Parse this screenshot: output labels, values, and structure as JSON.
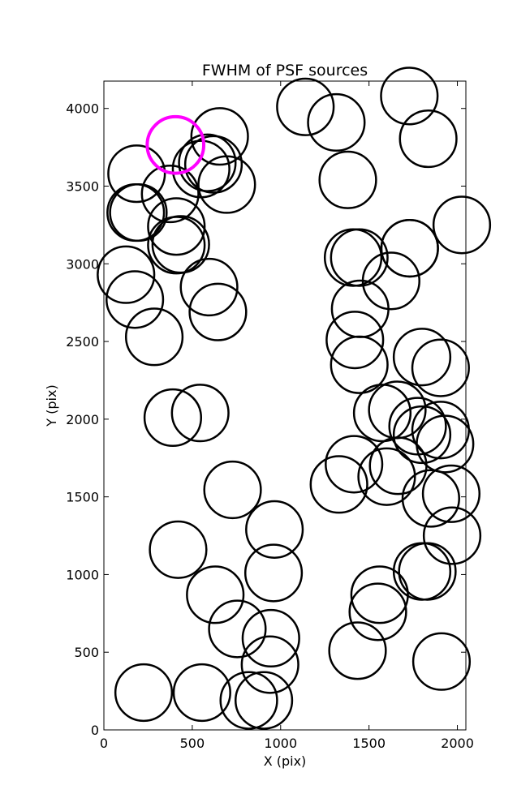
{
  "chart_data": {
    "type": "scatter",
    "title": "FWHM of PSF sources",
    "xlabel": "X (pix)",
    "ylabel": "Y (pix)",
    "xlim": [
      0,
      2048
    ],
    "ylim": [
      0,
      4176
    ],
    "xticks": [
      0,
      500,
      1000,
      1500,
      2000
    ],
    "yticks": [
      0,
      500,
      1000,
      1500,
      2000,
      2500,
      3000,
      3500,
      4000
    ],
    "grid": false,
    "marker_radius": 160,
    "colors": {
      "default_circle": "#000000",
      "highlight_circle": "#ff00ff"
    },
    "series": [
      {
        "name": "",
        "color": "#000000",
        "x": [
          1140,
          1315,
          1380,
          1728,
          1835,
          1730,
          2025,
          1410,
          1445,
          1730,
          1625,
          1450,
          1420,
          1445,
          1800,
          1905,
          1575,
          1660,
          1775,
          1800,
          1905,
          1930,
          1415,
          1665,
          1330,
          1600,
          1850,
          1965,
          1970,
          1800,
          1830,
          1560,
          1550,
          1435,
          1910,
          655,
          585,
          620,
          550,
          695,
          185,
          180,
          375,
          410,
          195,
          410,
          435,
          595,
          645,
          125,
          175,
          285,
          390,
          545,
          728,
          965,
          420,
          630,
          755,
          945,
          960,
          940,
          225,
          555,
          820,
          905
        ],
        "y": [
          4010,
          3910,
          3540,
          4080,
          3805,
          3100,
          3250,
          3040,
          3040,
          3100,
          2890,
          2710,
          2510,
          2350,
          2400,
          2330,
          2040,
          2060,
          1955,
          1900,
          1930,
          1840,
          1710,
          1700,
          1580,
          1630,
          1490,
          1520,
          1250,
          1020,
          1020,
          870,
          760,
          510,
          440,
          3820,
          3650,
          3640,
          3610,
          3510,
          3580,
          3330,
          3450,
          3240,
          3330,
          3120,
          3125,
          2850,
          2690,
          2930,
          2770,
          2530,
          2010,
          2040,
          1545,
          1290,
          1160,
          870,
          650,
          590,
          1010,
          420,
          240,
          240,
          190,
          190
        ]
      },
      {
        "name": "",
        "color": "#ff00ff",
        "x": [
          405
        ],
        "y": [
          3765
        ]
      }
    ]
  }
}
